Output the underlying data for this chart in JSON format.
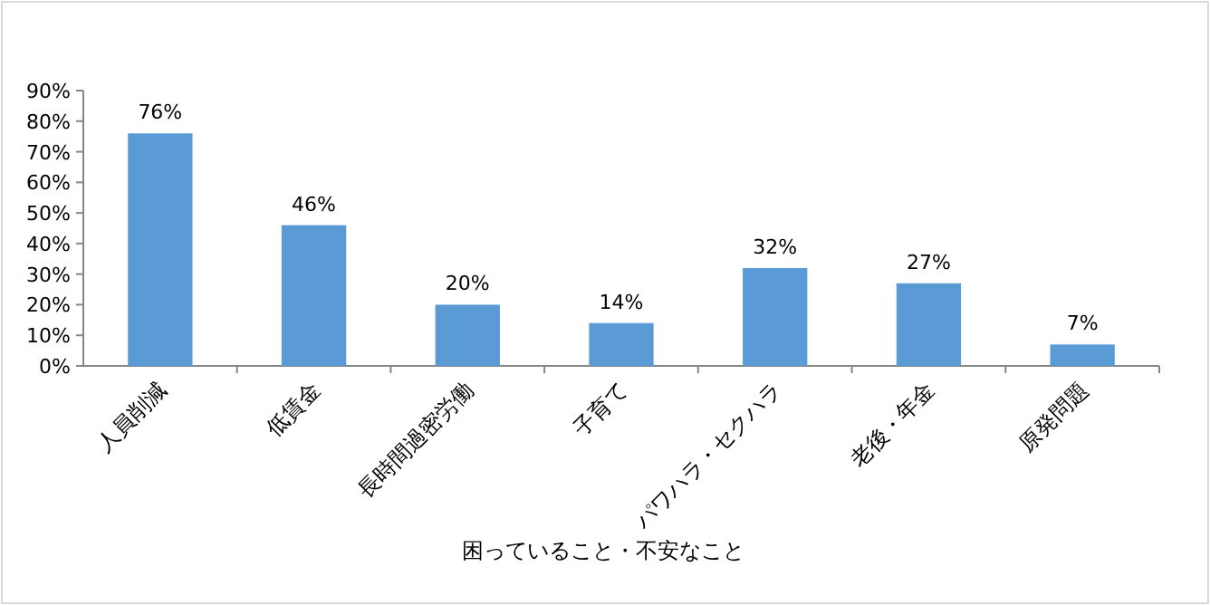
{
  "chart_data": {
    "type": "bar",
    "xlabel": "困っていること・不安なこと",
    "categories": [
      "人員削減",
      "低賃金",
      "長時間過密労働",
      "子育て",
      "パワハラ・セクハラ",
      "老後・年金",
      "原発問題"
    ],
    "values": [
      76,
      46,
      20,
      14,
      32,
      27,
      7
    ],
    "value_labels": [
      "76%",
      "46%",
      "20%",
      "14%",
      "32%",
      "27%",
      "7%"
    ],
    "color": "#5b9bd5",
    "ylim": [
      0,
      90
    ],
    "yticks": [
      {
        "value": 0,
        "label": "0%"
      },
      {
        "value": 10,
        "label": "10%"
      },
      {
        "value": 20,
        "label": "20%"
      },
      {
        "value": 30,
        "label": "30%"
      },
      {
        "value": 40,
        "label": "40%"
      },
      {
        "value": 50,
        "label": "50%"
      },
      {
        "value": 60,
        "label": "60%"
      },
      {
        "value": 70,
        "label": "70%"
      },
      {
        "value": 80,
        "label": "80%"
      },
      {
        "value": 90,
        "label": "90%"
      }
    ],
    "grid": false
  }
}
